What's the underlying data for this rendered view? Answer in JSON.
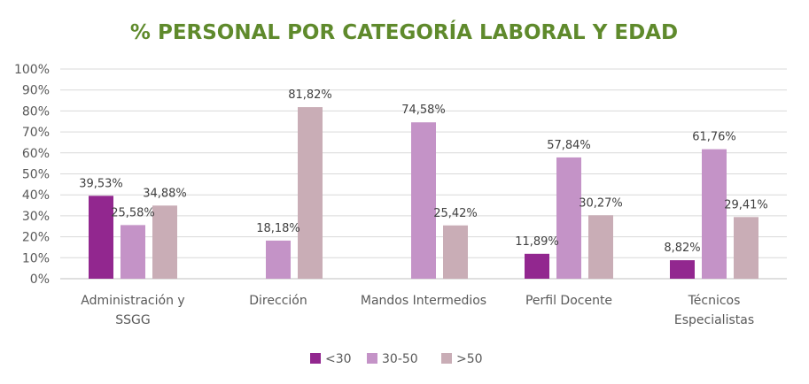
{
  "chart_data": {
    "type": "bar",
    "title": "% PERSONAL POR CATEGORÍA LABORAL Y EDAD",
    "categories": [
      [
        "Administración y",
        "SSGG"
      ],
      [
        "Dirección"
      ],
      [
        "Mandos Intermedios"
      ],
      [
        "Perfil Docente"
      ],
      [
        "Técnicos",
        "Especialistas"
      ]
    ],
    "series": [
      {
        "name": "<30",
        "color": "#92278f",
        "values": [
          39.53,
          null,
          null,
          11.89,
          8.82
        ],
        "labels": [
          "39,53%",
          "",
          "",
          "11,89%",
          "8,82%"
        ]
      },
      {
        "name": "30-50",
        "color": "#c493c7",
        "values": [
          25.58,
          18.18,
          74.58,
          57.84,
          61.76
        ],
        "labels": [
          "25,58%",
          "18,18%",
          "74,58%",
          "57,84%",
          "61,76%"
        ]
      },
      {
        "name": ">50",
        "color": "#c9adb6",
        "values": [
          34.88,
          81.82,
          25.42,
          30.27,
          29.41
        ],
        "labels": [
          "34,88%",
          "81,82%",
          "25,42%",
          "30,27%",
          "29,41%"
        ]
      }
    ],
    "ylim": [
      0,
      100
    ],
    "yticks": [
      "0%",
      "10%",
      "20%",
      "30%",
      "40%",
      "50%",
      "60%",
      "70%",
      "80%",
      "90%",
      "100%"
    ],
    "grid": true,
    "legend_position": "bottom",
    "title_color": "#5f8a2c"
  }
}
